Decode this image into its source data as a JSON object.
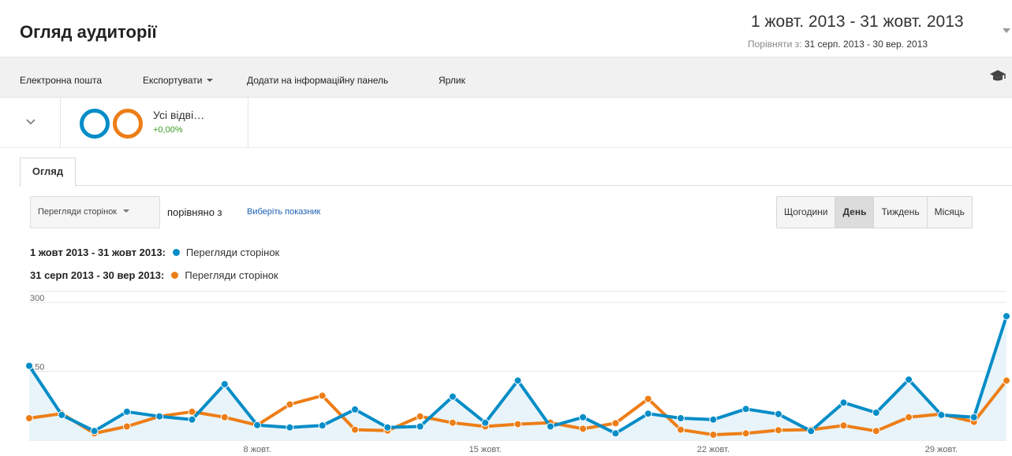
{
  "header": {
    "title": "Огляд аудиторії",
    "date_range": "1 жовт. 2013 - 31 жовт. 2013",
    "compare_label": "Порівняти з:",
    "compare_range": "31 серп. 2013 - 30 вер. 2013"
  },
  "toolbar": {
    "email": "Електронна пошта",
    "export": "Експортувати",
    "add_dashboard": "Додати на інформаційну панель",
    "shortcut": "Ярлик",
    "help_icon": "graduation-cap-icon"
  },
  "segment": {
    "name": "Усі відві…",
    "change": "+0,00%",
    "toggle_icon": "chevron-down-icon"
  },
  "tabs": [
    "Огляд"
  ],
  "controls": {
    "metric": "Перегляди сторінок",
    "vs": "порівняно з",
    "choose_metric": "Виберіть показник",
    "periods": [
      "Щогодини",
      "День",
      "Тиждень",
      "Місяць"
    ],
    "active_period": "День"
  },
  "legend": [
    {
      "range": "1 жовт 2013 - 31 жовт 2013:",
      "metric": "Перегляди сторінок",
      "color": "#058dc7"
    },
    {
      "range": "31 серп 2013 - 30 вер 2013:",
      "metric": "Перегляди сторінок",
      "color": "#ed7e17"
    }
  ],
  "chart_data": {
    "type": "line",
    "x_ticks": [
      "8 жовт.",
      "15 жовт.",
      "22 жовт.",
      "29 жовт."
    ],
    "x_tick_indices": [
      7,
      14,
      21,
      28
    ],
    "y_ticks": [
      150,
      300
    ],
    "ylim": [
      0,
      300
    ],
    "grid": true,
    "series": [
      {
        "name": "Перегляди сторінок",
        "range": "1 жовт 2013 - 31 жовт 2013",
        "color": "#058dc7",
        "fill": true,
        "values": [
          162,
          55,
          20,
          62,
          52,
          45,
          122,
          33,
          28,
          32,
          67,
          28,
          30,
          95,
          38,
          130,
          30,
          50,
          15,
          58,
          48,
          45,
          68,
          57,
          20,
          82,
          60,
          132,
          55,
          50,
          270
        ]
      },
      {
        "name": "Перегляди сторінок",
        "range": "31 серп 2013 - 30 вер 2013",
        "color": "#ed7e17",
        "fill": false,
        "values": [
          48,
          58,
          15,
          30,
          52,
          62,
          50,
          33,
          78,
          97,
          23,
          21,
          52,
          38,
          30,
          35,
          38,
          25,
          37,
          90,
          23,
          12,
          15,
          22,
          23,
          32,
          20,
          50,
          57,
          40,
          130
        ]
      }
    ]
  }
}
